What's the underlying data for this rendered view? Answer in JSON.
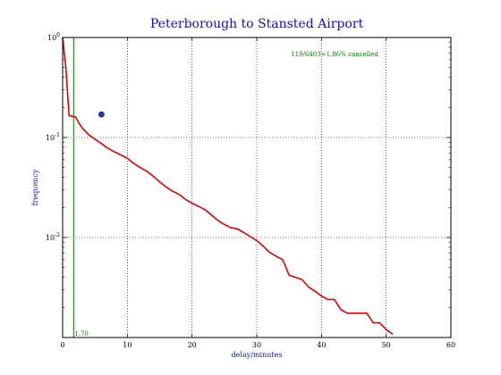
{
  "chart_data": {
    "type": "line",
    "title": "Peterborough to Stansted Airport",
    "xlabel": "delay/minutes",
    "ylabel": "frequency",
    "xlim": [
      0,
      60
    ],
    "ylim": [
      0.001,
      1
    ],
    "yscale": "log",
    "grid": true,
    "x_ticks": [
      "0",
      "10",
      "20",
      "30",
      "40",
      "50",
      "60"
    ],
    "y_ticks": [
      {
        "base": "10",
        "exp": "0",
        "value": 1
      },
      {
        "base": "10",
        "exp": "-1",
        "value": 0.1
      },
      {
        "base": "10",
        "exp": "-2",
        "value": 0.01
      }
    ],
    "annotation": "119/6403=1.86% cancelled",
    "vline": {
      "x": 1.7,
      "label": "1.70",
      "color": "#007f00"
    },
    "marker": {
      "x": 6,
      "y": 0.17,
      "color": "#1f3fbf"
    },
    "series": [
      {
        "color": "#e00000",
        "x": [
          0,
          0.5,
          1,
          1.5,
          2,
          2.5,
          3,
          4,
          5,
          6,
          7,
          8,
          9,
          10,
          11,
          12,
          13,
          14,
          15,
          16,
          17,
          18,
          19,
          20,
          21,
          22,
          23,
          24,
          25,
          26,
          27,
          28,
          29,
          30,
          31,
          32,
          33,
          34,
          35,
          36,
          37,
          38,
          39,
          40,
          41,
          42,
          43,
          44,
          45,
          46,
          47,
          48,
          49,
          50,
          51
        ],
        "y": [
          1.0,
          0.5,
          0.165,
          0.163,
          0.16,
          0.14,
          0.125,
          0.107,
          0.096,
          0.087,
          0.078,
          0.072,
          0.067,
          0.062,
          0.055,
          0.05,
          0.046,
          0.041,
          0.036,
          0.032,
          0.029,
          0.027,
          0.024,
          0.022,
          0.0205,
          0.019,
          0.0168,
          0.0148,
          0.0135,
          0.0125,
          0.0122,
          0.0112,
          0.0102,
          0.0093,
          0.0082,
          0.0071,
          0.0065,
          0.006,
          0.0042,
          0.004,
          0.0038,
          0.0032,
          0.0029,
          0.0026,
          0.0024,
          0.0024,
          0.0019,
          0.00175,
          0.00175,
          0.00175,
          0.00175,
          0.0014,
          0.0014,
          0.0012,
          0.00108
        ]
      }
    ]
  }
}
